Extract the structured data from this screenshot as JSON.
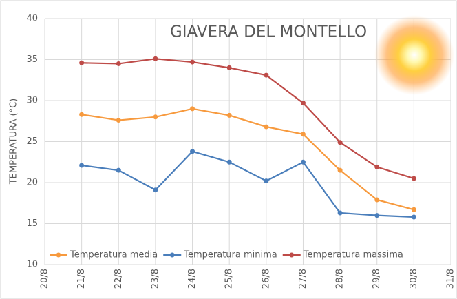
{
  "chart_data": {
    "type": "line",
    "title": "GIAVERA DEL MONTELLO",
    "y_label": "TEMPERATURA (°C)",
    "categories": [
      "20/8",
      "21/8",
      "22/8",
      "23/8",
      "24/8",
      "25/8",
      "26/8",
      "27/8",
      "28/8",
      "29/8",
      "30/8",
      "31/8"
    ],
    "series": [
      {
        "name": "Temperatura media",
        "color": "#f79a3e",
        "values": [
          null,
          28.3,
          27.6,
          28.0,
          29.0,
          28.2,
          26.8,
          25.9,
          21.5,
          17.9,
          16.7,
          null
        ]
      },
      {
        "name": "Temperatura minima",
        "color": "#4a7ebb",
        "values": [
          null,
          22.1,
          21.5,
          19.1,
          23.8,
          22.5,
          20.2,
          22.5,
          16.3,
          16.0,
          15.8,
          null
        ]
      },
      {
        "name": "Temperatura massima",
        "color": "#be4b48",
        "values": [
          null,
          34.6,
          34.5,
          35.1,
          34.7,
          34.0,
          33.1,
          29.7,
          24.9,
          21.9,
          20.5,
          null
        ]
      }
    ],
    "ylim": [
      10,
      40
    ],
    "yticks": [
      10,
      15,
      20,
      25,
      30,
      35,
      40
    ],
    "grid": true,
    "legend": "bottom"
  }
}
